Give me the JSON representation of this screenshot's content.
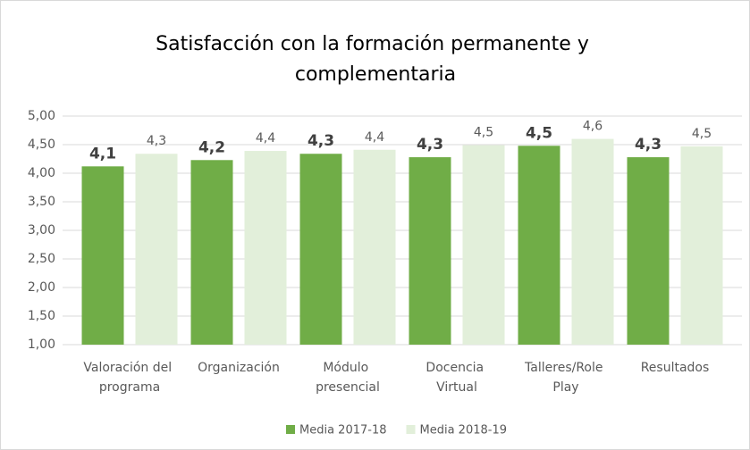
{
  "chart_data": {
    "type": "bar",
    "title": "Satisfacción con la formación permanente y complementaria",
    "categories": [
      "Valoración del programa",
      "Organización",
      "Módulo presencial",
      "Docencia Virtual",
      "Talleres/Role Play",
      "Resultados"
    ],
    "series": [
      {
        "name": "Media 2017-18",
        "color": "#70ad47",
        "values": [
          4.12,
          4.23,
          4.34,
          4.28,
          4.48,
          4.28
        ],
        "value_labels": [
          "4,1",
          "4,2",
          "4,3",
          "4,3",
          "4,5",
          "4,3"
        ]
      },
      {
        "name": "Media 2018-19",
        "color": "#e2efda",
        "values": [
          4.34,
          4.39,
          4.41,
          4.49,
          4.6,
          4.47
        ],
        "value_labels": [
          "4,3",
          "4,4",
          "4,4",
          "4,5",
          "4,6",
          "4,5"
        ]
      }
    ],
    "ylim": [
      1,
      5
    ],
    "yticks": [
      {
        "value": 1,
        "label": "1,00"
      },
      {
        "value": 1.5,
        "label": "1,50"
      },
      {
        "value": 2,
        "label": "2,00"
      },
      {
        "value": 2.5,
        "label": "2,50"
      },
      {
        "value": 3,
        "label": "3,00"
      },
      {
        "value": 3.5,
        "label": "3,50"
      },
      {
        "value": 4,
        "label": "4,00"
      },
      {
        "value": 4.5,
        "label": "4,50"
      },
      {
        "value": 5,
        "label": "5,00"
      }
    ],
    "grid": true,
    "legend": "bottom"
  }
}
